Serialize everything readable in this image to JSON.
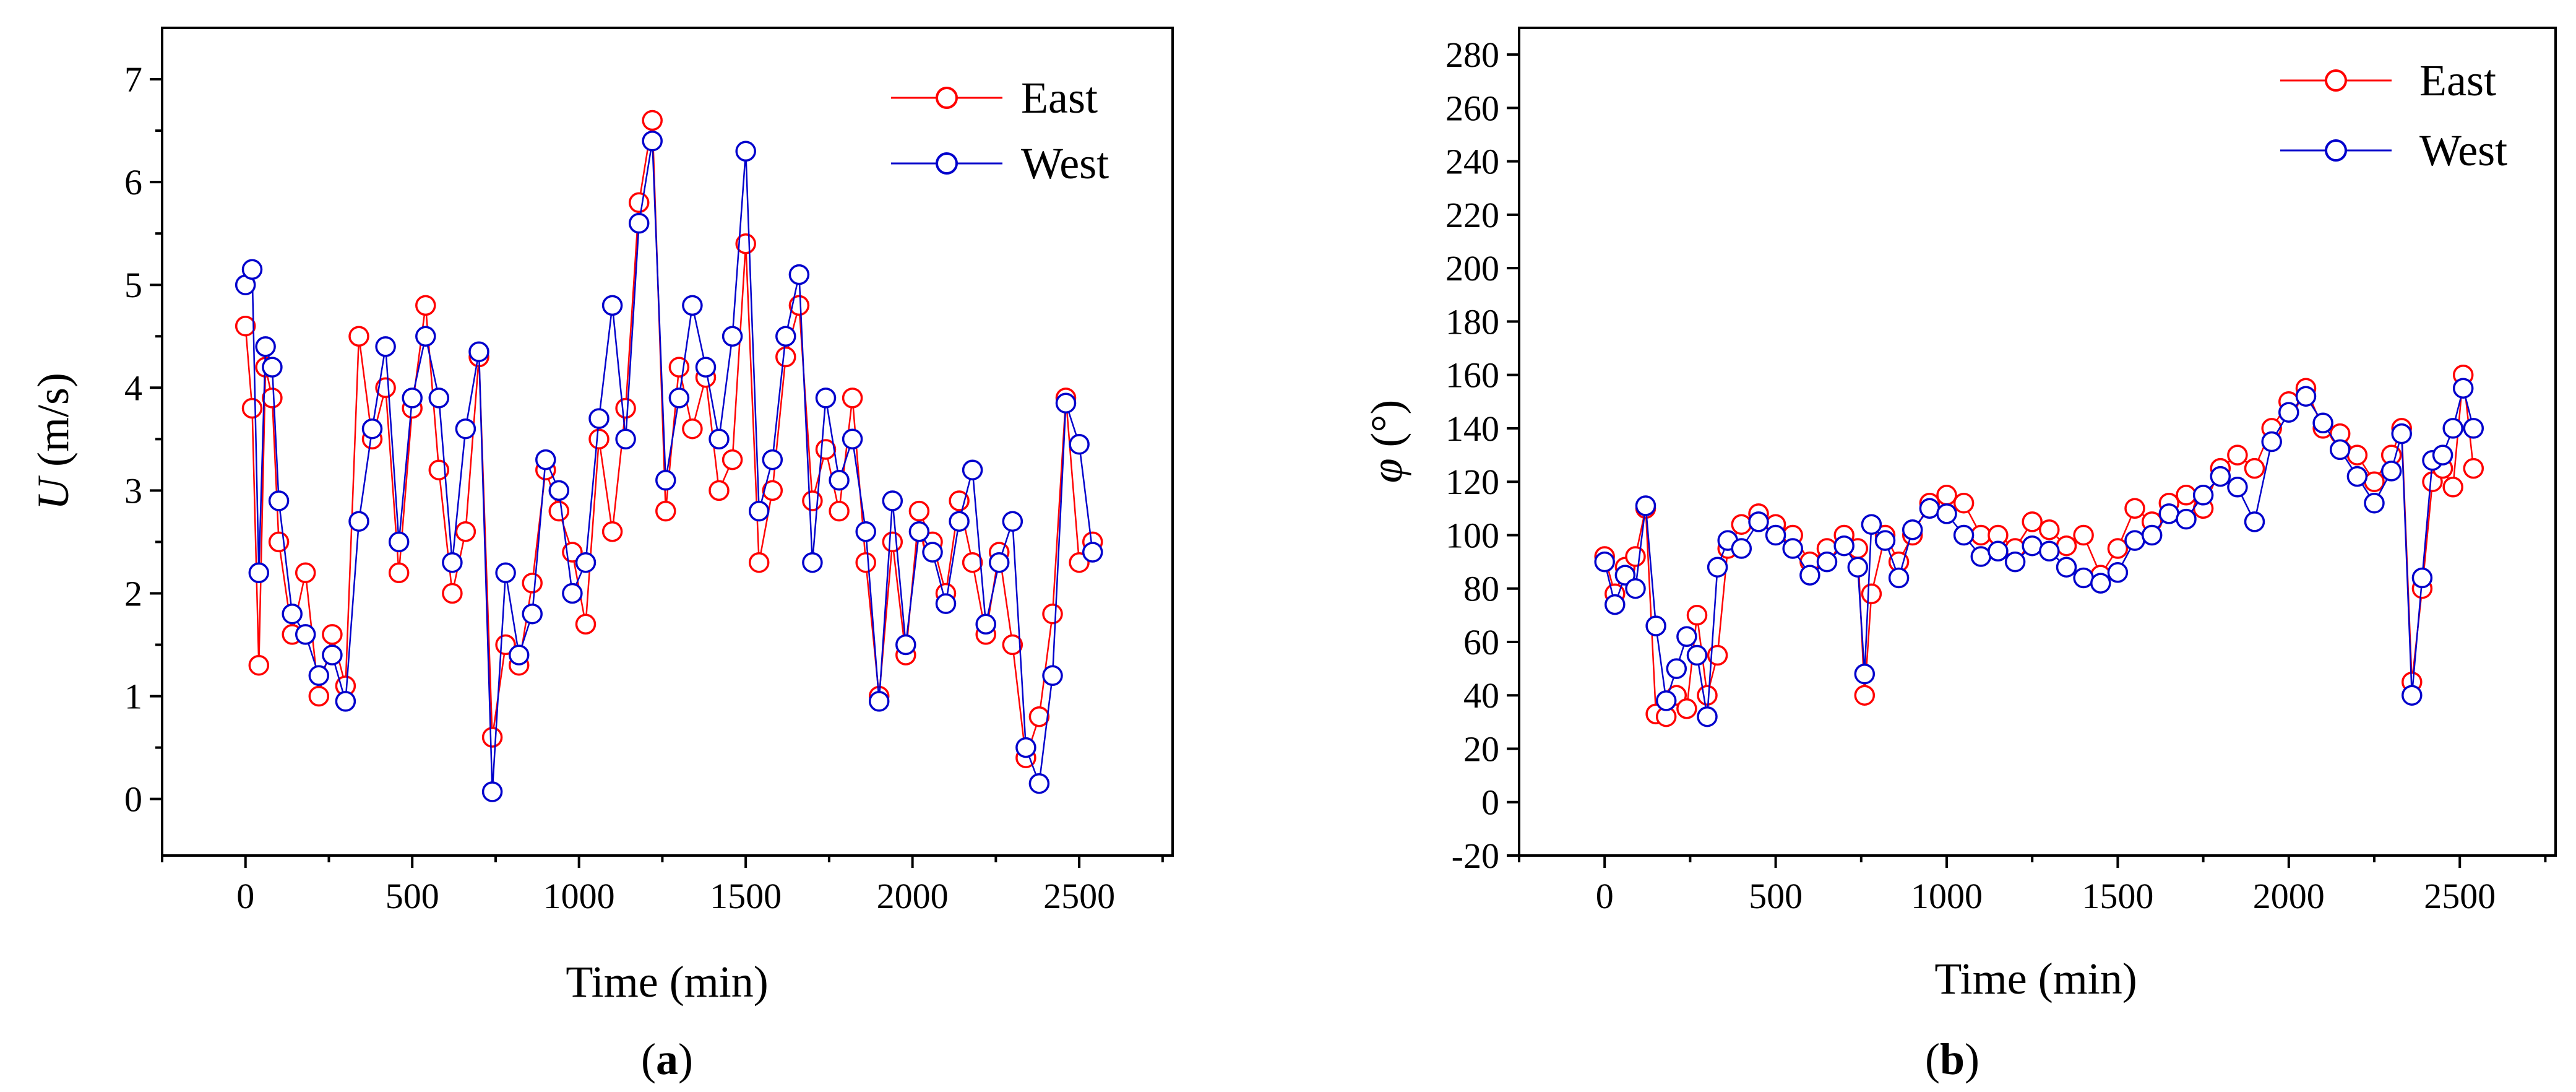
{
  "chart_data": [
    {
      "type": "line",
      "panel_label": "a",
      "xlabel": "Time (min)",
      "ylabel_symbol": "U",
      "ylabel_unit": " (m/s)",
      "xlim": [
        -250,
        2780
      ],
      "ylim": [
        -0.55,
        7.5
      ],
      "xticks": [
        0,
        500,
        1000,
        1500,
        2000,
        2500
      ],
      "yticks": [
        0,
        1,
        2,
        3,
        4,
        5,
        6,
        7
      ],
      "legend_position": "top-right",
      "colors": {
        "East": "#ff0000",
        "West": "#0000cc"
      },
      "series": [
        {
          "name": "East",
          "x": [
            0,
            20,
            40,
            60,
            80,
            100,
            140,
            180,
            220,
            260,
            300,
            340,
            380,
            420,
            460,
            500,
            540,
            580,
            620,
            660,
            700,
            740,
            780,
            820,
            860,
            900,
            940,
            980,
            1020,
            1060,
            1100,
            1140,
            1180,
            1220,
            1260,
            1300,
            1340,
            1380,
            1420,
            1460,
            1500,
            1540,
            1580,
            1620,
            1660,
            1700,
            1740,
            1780,
            1820,
            1860,
            1900,
            1940,
            1980,
            2020,
            2060,
            2100,
            2140,
            2180,
            2220,
            2260,
            2300,
            2340,
            2380,
            2420,
            2460,
            2500,
            2540
          ],
          "y": [
            4.6,
            3.8,
            1.3,
            4.2,
            3.9,
            2.5,
            1.6,
            2.2,
            1.0,
            1.6,
            1.1,
            4.5,
            3.5,
            4.0,
            2.2,
            3.8,
            4.8,
            3.2,
            2.0,
            2.6,
            4.3,
            0.6,
            1.5,
            1.3,
            2.1,
            3.2,
            2.8,
            2.4,
            1.7,
            3.5,
            2.6,
            3.8,
            5.8,
            6.6,
            2.8,
            4.2,
            3.6,
            4.1,
            3.0,
            3.3,
            5.4,
            2.3,
            3.0,
            4.3,
            4.8,
            2.9,
            3.4,
            2.8,
            3.9,
            2.3,
            1.0,
            2.5,
            1.4,
            2.8,
            2.5,
            2.0,
            2.9,
            2.3,
            1.6,
            2.4,
            1.5,
            0.4,
            0.8,
            1.8,
            3.9,
            2.3,
            2.5
          ]
        },
        {
          "name": "West",
          "x": [
            0,
            20,
            40,
            60,
            80,
            100,
            140,
            180,
            220,
            260,
            300,
            340,
            380,
            420,
            460,
            500,
            540,
            580,
            620,
            660,
            700,
            740,
            780,
            820,
            860,
            900,
            940,
            980,
            1020,
            1060,
            1100,
            1140,
            1180,
            1220,
            1260,
            1300,
            1340,
            1380,
            1420,
            1460,
            1500,
            1540,
            1580,
            1620,
            1660,
            1700,
            1740,
            1780,
            1820,
            1860,
            1900,
            1940,
            1980,
            2020,
            2060,
            2100,
            2140,
            2180,
            2220,
            2260,
            2300,
            2340,
            2380,
            2420,
            2460,
            2500,
            2540
          ],
          "y": [
            5.0,
            5.15,
            2.2,
            4.4,
            4.2,
            2.9,
            1.8,
            1.6,
            1.2,
            1.4,
            0.95,
            2.7,
            3.6,
            4.4,
            2.5,
            3.9,
            4.5,
            3.9,
            2.3,
            3.6,
            4.35,
            0.07,
            2.2,
            1.4,
            1.8,
            3.3,
            3.0,
            2.0,
            2.3,
            3.7,
            4.8,
            3.5,
            5.6,
            6.4,
            3.1,
            3.9,
            4.8,
            4.2,
            3.5,
            4.5,
            6.3,
            2.8,
            3.3,
            4.5,
            5.1,
            2.3,
            3.9,
            3.1,
            3.5,
            2.6,
            0.95,
            2.9,
            1.5,
            2.6,
            2.4,
            1.9,
            2.7,
            3.2,
            1.7,
            2.3,
            2.7,
            0.5,
            0.15,
            1.2,
            3.85,
            3.45,
            2.4
          ]
        }
      ]
    },
    {
      "type": "line",
      "panel_label": "b",
      "xlabel": "Time (min)",
      "ylabel_symbol": "φ",
      "ylabel_unit": " (°)",
      "xlim": [
        -250,
        2780
      ],
      "ylim": [
        -20,
        290
      ],
      "xticks": [
        0,
        500,
        1000,
        1500,
        2000,
        2500
      ],
      "yticks": [
        -20,
        0,
        20,
        40,
        60,
        80,
        100,
        120,
        140,
        160,
        180,
        200,
        220,
        240,
        260,
        280
      ],
      "legend_position": "top-right",
      "colors": {
        "East": "#ff0000",
        "West": "#0000cc"
      },
      "series": [
        {
          "name": "East",
          "x": [
            0,
            30,
            60,
            90,
            120,
            150,
            180,
            210,
            240,
            270,
            300,
            330,
            360,
            400,
            450,
            500,
            550,
            600,
            650,
            700,
            740,
            760,
            780,
            820,
            860,
            900,
            950,
            1000,
            1050,
            1100,
            1150,
            1200,
            1250,
            1300,
            1350,
            1400,
            1450,
            1500,
            1550,
            1600,
            1650,
            1700,
            1750,
            1800,
            1850,
            1900,
            1950,
            2000,
            2050,
            2100,
            2150,
            2200,
            2250,
            2300,
            2330,
            2360,
            2390,
            2420,
            2450,
            2480,
            2510,
            2540
          ],
          "y": [
            92,
            78,
            88,
            92,
            110,
            33,
            32,
            40,
            35,
            70,
            40,
            55,
            95,
            104,
            108,
            104,
            100,
            90,
            95,
            100,
            95,
            40,
            78,
            100,
            90,
            100,
            112,
            115,
            112,
            100,
            100,
            95,
            105,
            102,
            96,
            100,
            85,
            95,
            110,
            105,
            112,
            115,
            110,
            125,
            130,
            125,
            140,
            150,
            155,
            140,
            138,
            130,
            120,
            130,
            140,
            45,
            80,
            120,
            125,
            118,
            160,
            125
          ]
        },
        {
          "name": "West",
          "x": [
            0,
            30,
            60,
            90,
            120,
            150,
            180,
            210,
            240,
            270,
            300,
            330,
            360,
            400,
            450,
            500,
            550,
            600,
            650,
            700,
            740,
            760,
            780,
            820,
            860,
            900,
            950,
            1000,
            1050,
            1100,
            1150,
            1200,
            1250,
            1300,
            1350,
            1400,
            1450,
            1500,
            1550,
            1600,
            1650,
            1700,
            1750,
            1800,
            1850,
            1900,
            1950,
            2000,
            2050,
            2100,
            2150,
            2200,
            2250,
            2300,
            2330,
            2360,
            2390,
            2420,
            2450,
            2480,
            2510,
            2540
          ],
          "y": [
            90,
            74,
            85,
            80,
            111,
            66,
            38,
            50,
            62,
            55,
            32,
            88,
            98,
            95,
            105,
            100,
            95,
            85,
            90,
            96,
            88,
            48,
            104,
            98,
            84,
            102,
            110,
            108,
            100,
            92,
            94,
            90,
            96,
            94,
            88,
            84,
            82,
            86,
            98,
            100,
            108,
            106,
            115,
            122,
            118,
            105,
            135,
            146,
            152,
            142,
            132,
            122,
            112,
            124,
            138,
            40,
            84,
            128,
            130,
            140,
            155,
            140
          ]
        }
      ]
    }
  ]
}
